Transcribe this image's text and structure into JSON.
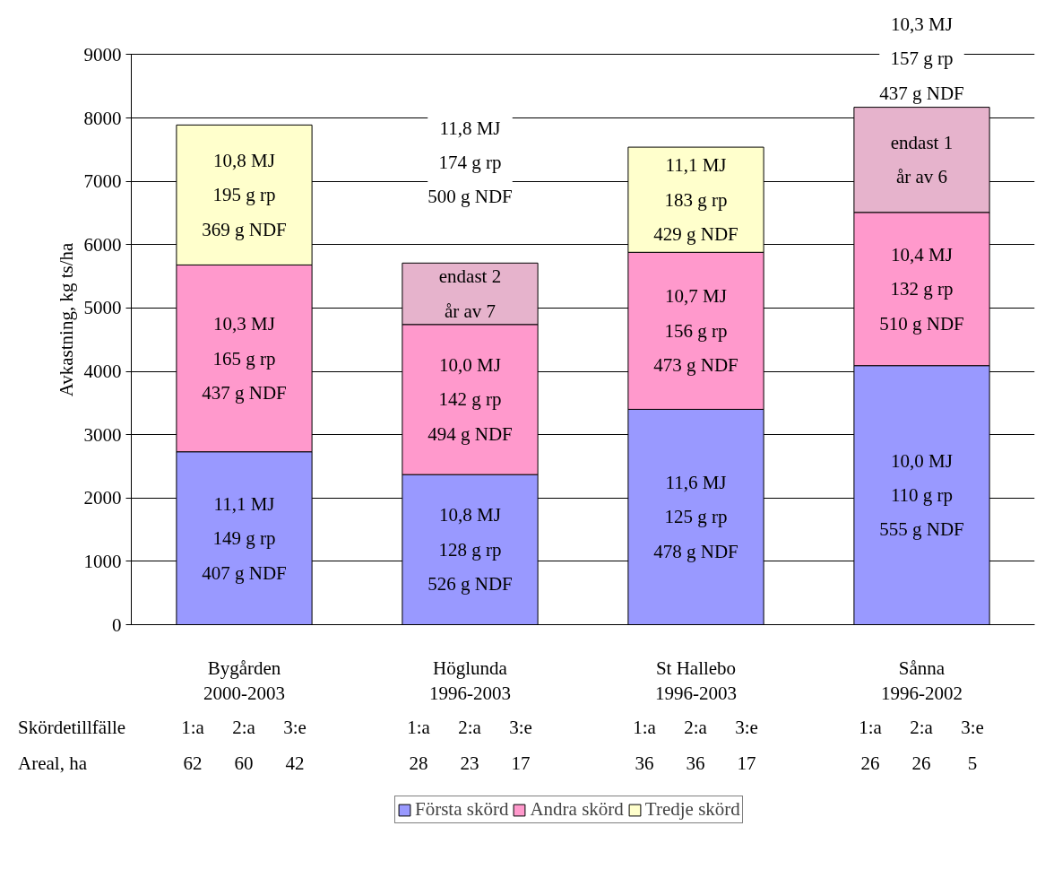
{
  "chart_data": {
    "type": "bar",
    "stacked": true,
    "ylabel": "Avkastning, kg ts/ha",
    "categories": [
      "Bygården\n2000-2003",
      "Höglunda\n1996-2003",
      "St Hallebo\n1996-2003",
      "Sånna\n1996-2002"
    ],
    "series": [
      {
        "name": "Första skörd",
        "color": "#9999ff",
        "values": [
          2730,
          2370,
          3400,
          4090
        ]
      },
      {
        "name": "Andra skörd",
        "color": "#ff99cc",
        "values": [
          2950,
          2370,
          2480,
          2420
        ]
      },
      {
        "name": "Tredje skörd",
        "color": "#ffffcc",
        "colors": [
          "#ffffcc",
          "#e6b3cc",
          "#ffffcc",
          "#e6b3cc"
        ],
        "values": [
          2210,
          970,
          1660,
          1660
        ]
      }
    ],
    "ylim": [
      0,
      9000
    ],
    "yticks": [
      0,
      1000,
      2000,
      3000,
      4000,
      5000,
      6000,
      7000,
      8000,
      9000
    ],
    "grid": "y",
    "legend": "bottom",
    "annotations": [
      "11,1 MJ\n149 g rp\n407 g NDF",
      "10,3 MJ\n165 g rp\n437 g NDF",
      "10,8 MJ\n195 g rp\n369 g NDF",
      "10,8 MJ\n128 g rp\n526 g NDF",
      "10,0 MJ\n142 g rp\n494 g NDF",
      "endast 2\når av 7",
      "11,8 MJ\n174 g rp\n500 g NDF",
      "11,6 MJ\n125 g rp\n478 g NDF",
      "10,7 MJ\n156 g rp\n473 g NDF",
      "11,1 MJ\n183 g rp\n429 g NDF",
      "10,0 MJ\n110 g rp\n555 g NDF",
      "10,4 MJ\n132 g rp\n510 g NDF",
      "endast 1\når av 6",
      "10,3 MJ\n157 g rp\n437 g NDF",
      "Skördetillfälle",
      "1:a",
      "2:a",
      "3:e",
      "1:a",
      "2:a",
      "3:e",
      "1:a",
      "2:a",
      "3:e",
      "1:a",
      "2:a",
      "3:e",
      "Areal, ha",
      "62",
      "60",
      "42",
      "28",
      "23",
      "17",
      "36",
      "36",
      "17",
      "26",
      "26",
      "5"
    ]
  }
}
